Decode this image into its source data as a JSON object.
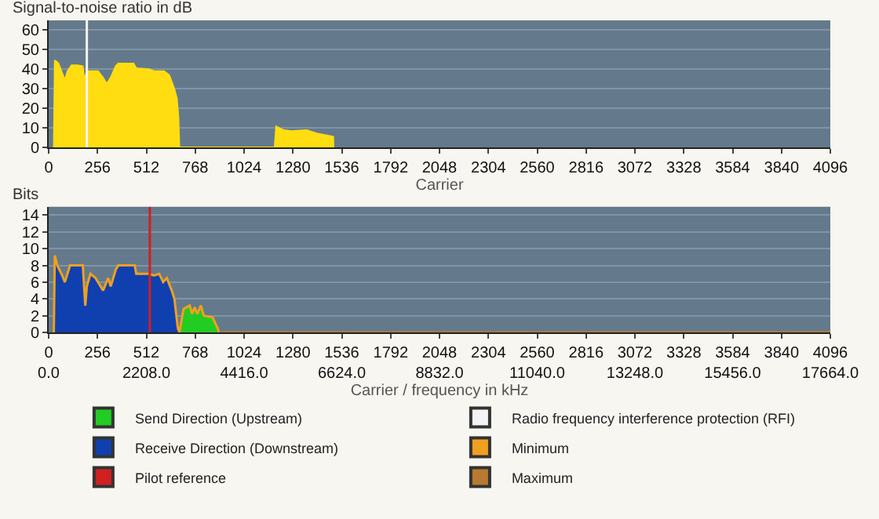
{
  "chart_data": [
    {
      "type": "area",
      "ylabel": "Signal-to-noise ratio in dB",
      "xlabel": "Carrier",
      "xlim": [
        0,
        4096
      ],
      "ylim": [
        0,
        65
      ],
      "xticks": [
        0,
        256,
        512,
        768,
        1024,
        1280,
        1536,
        1792,
        2048,
        2304,
        2560,
        2816,
        3072,
        3328,
        3584,
        3840,
        4096
      ],
      "yticks": [
        0,
        10,
        20,
        30,
        40,
        50,
        60
      ],
      "grid": "y",
      "series": [
        {
          "color": "#ffdd10",
          "x": [
            27,
            32,
            40,
            51,
            67,
            85,
            99,
            120,
            152,
            179,
            187,
            200,
            219,
            259,
            285,
            304,
            325,
            352,
            365,
            445,
            459,
            525,
            552,
            605,
            632,
            659,
            672,
            680,
            685,
            1184,
            1192,
            1232,
            1272,
            1352,
            1405,
            1491,
            1493
          ],
          "values": [
            0,
            44.5,
            44,
            43,
            39,
            34.5,
            39,
            42,
            42,
            41.5,
            34.5,
            39,
            39,
            39,
            35.7,
            32.6,
            35.7,
            41.7,
            42.9,
            42.9,
            40.5,
            40,
            39,
            39,
            37,
            29.8,
            25,
            15.5,
            0,
            0,
            10.7,
            8.8,
            8.3,
            8.8,
            7.1,
            5.5,
            0
          ]
        }
      ],
      "ref_lines": [
        {
          "axis": "x",
          "value": 200,
          "label": "Radio frequency interference protection (RFI)",
          "color": "#f4f4f4"
        }
      ]
    },
    {
      "type": "area",
      "ylabel": "Bits",
      "xlabel": "Carrier / frequency in kHz",
      "xlim": [
        0,
        4096
      ],
      "ylim": [
        0,
        15
      ],
      "xticks": [
        {
          "value": 0,
          "label": "0\n0.0"
        },
        {
          "value": 256,
          "label": "256\n"
        },
        {
          "value": 512,
          "label": "512\n2208.0"
        },
        {
          "value": 768,
          "label": "768\n"
        },
        {
          "value": 1024,
          "label": "1024\n4416.0"
        },
        {
          "value": 1280,
          "label": "1280\n"
        },
        {
          "value": 1536,
          "label": "1536\n6624.0"
        },
        {
          "value": 1792,
          "label": "1792\n"
        },
        {
          "value": 2048,
          "label": "2048\n8832.0"
        },
        {
          "value": 2304,
          "label": "2304\n"
        },
        {
          "value": 2560,
          "label": "2560\n11040.0"
        },
        {
          "value": 2816,
          "label": "2816\n"
        },
        {
          "value": 3072,
          "label": "3072\n13248.0"
        },
        {
          "value": 3328,
          "label": "3328\n"
        },
        {
          "value": 3584,
          "label": "3584\n15456.0"
        },
        {
          "value": 3840,
          "label": "3840\n"
        },
        {
          "value": 4096,
          "label": "4096\n17664.0"
        }
      ],
      "yticks": [
        0,
        2,
        4,
        6,
        8,
        10,
        12,
        14
      ],
      "grid": "y",
      "legend": "bottom",
      "series": [
        {
          "name": "Send Direction (Upstream)",
          "color": "#22cc22",
          "x": [
            685,
            707,
            739,
            752,
            765,
            779,
            797,
            813,
            859,
            885,
            893
          ],
          "values": [
            0,
            2.8,
            3.2,
            2.2,
            3,
            2.2,
            3.2,
            2,
            1.8,
            0.5,
            0
          ]
        },
        {
          "name": "Receive Direction (Downstream)",
          "color": "#1040b0",
          "x": [
            27,
            32,
            45,
            67,
            85,
            112,
            179,
            192,
            200,
            219,
            245,
            272,
            285,
            312,
            325,
            352,
            365,
            451,
            459,
            525,
            552,
            579,
            600,
            619,
            645,
            659,
            677,
            680
          ],
          "values": [
            0,
            9.2,
            8,
            7,
            6,
            8,
            8,
            3.2,
            5.5,
            7,
            6.5,
            5.5,
            5,
            6.5,
            5.5,
            7.5,
            8,
            8,
            7,
            7,
            6.8,
            7,
            6,
            6.5,
            5,
            4,
            0.5,
            0
          ]
        },
        {
          "name": "Minimum",
          "type": "line",
          "color": "#f0a020",
          "x": [
            27,
            32,
            45,
            67,
            85,
            112,
            179,
            192,
            200,
            219,
            245,
            272,
            285,
            312,
            325,
            352,
            365,
            451,
            459,
            525,
            552,
            579,
            600,
            619,
            645,
            659,
            677,
            685,
            707,
            739,
            752,
            765,
            779,
            797,
            813,
            859,
            885,
            893
          ],
          "values": [
            0,
            9.2,
            8,
            7,
            6,
            8,
            8,
            3.2,
            5.5,
            7,
            6.5,
            5.5,
            5,
            6.5,
            5.5,
            7.5,
            8,
            8,
            7,
            7,
            6.8,
            7,
            6,
            6.5,
            5,
            4,
            0.5,
            0,
            2.8,
            3.2,
            2.2,
            3,
            2.2,
            3.2,
            2,
            1.8,
            0.5,
            0
          ]
        },
        {
          "name": "Maximum",
          "type": "line",
          "color": "#b87a30",
          "x": [
            893,
            4096
          ],
          "values": [
            0,
            0
          ]
        }
      ],
      "ref_lines": [
        {
          "axis": "x",
          "value": 530,
          "label": "Pilot reference",
          "color": "#d02020"
        }
      ]
    }
  ]
}
